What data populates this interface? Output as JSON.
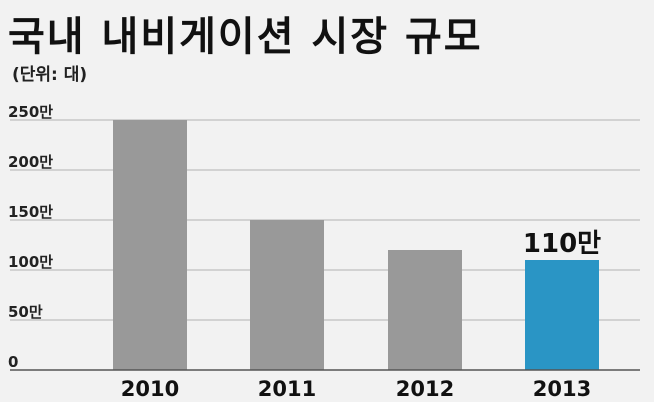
{
  "title": "국내 내비게이션 시장 규모",
  "unit_label": "(단위: 대)",
  "colors": {
    "bar": "#999999",
    "highlight": "#2a95c5",
    "grid": "#c8c8c8"
  },
  "chart_data": {
    "type": "bar",
    "title": "국내 내비게이션 시장 규모",
    "ylabel": "(단위: 대)",
    "xlabel": "",
    "categories": [
      "2010",
      "2011",
      "2012",
      "2013"
    ],
    "values": [
      250,
      150,
      120,
      110
    ],
    "value_unit": "만",
    "ylim": [
      0,
      250
    ],
    "yticks": [
      0,
      50,
      100,
      150,
      200,
      250
    ],
    "ytick_labels": [
      "0",
      "50만",
      "100만",
      "150만",
      "200만",
      "250만"
    ],
    "highlight_index": 3,
    "data_labels": [
      {
        "index": 3,
        "text": "110만"
      }
    ],
    "grid": true
  }
}
